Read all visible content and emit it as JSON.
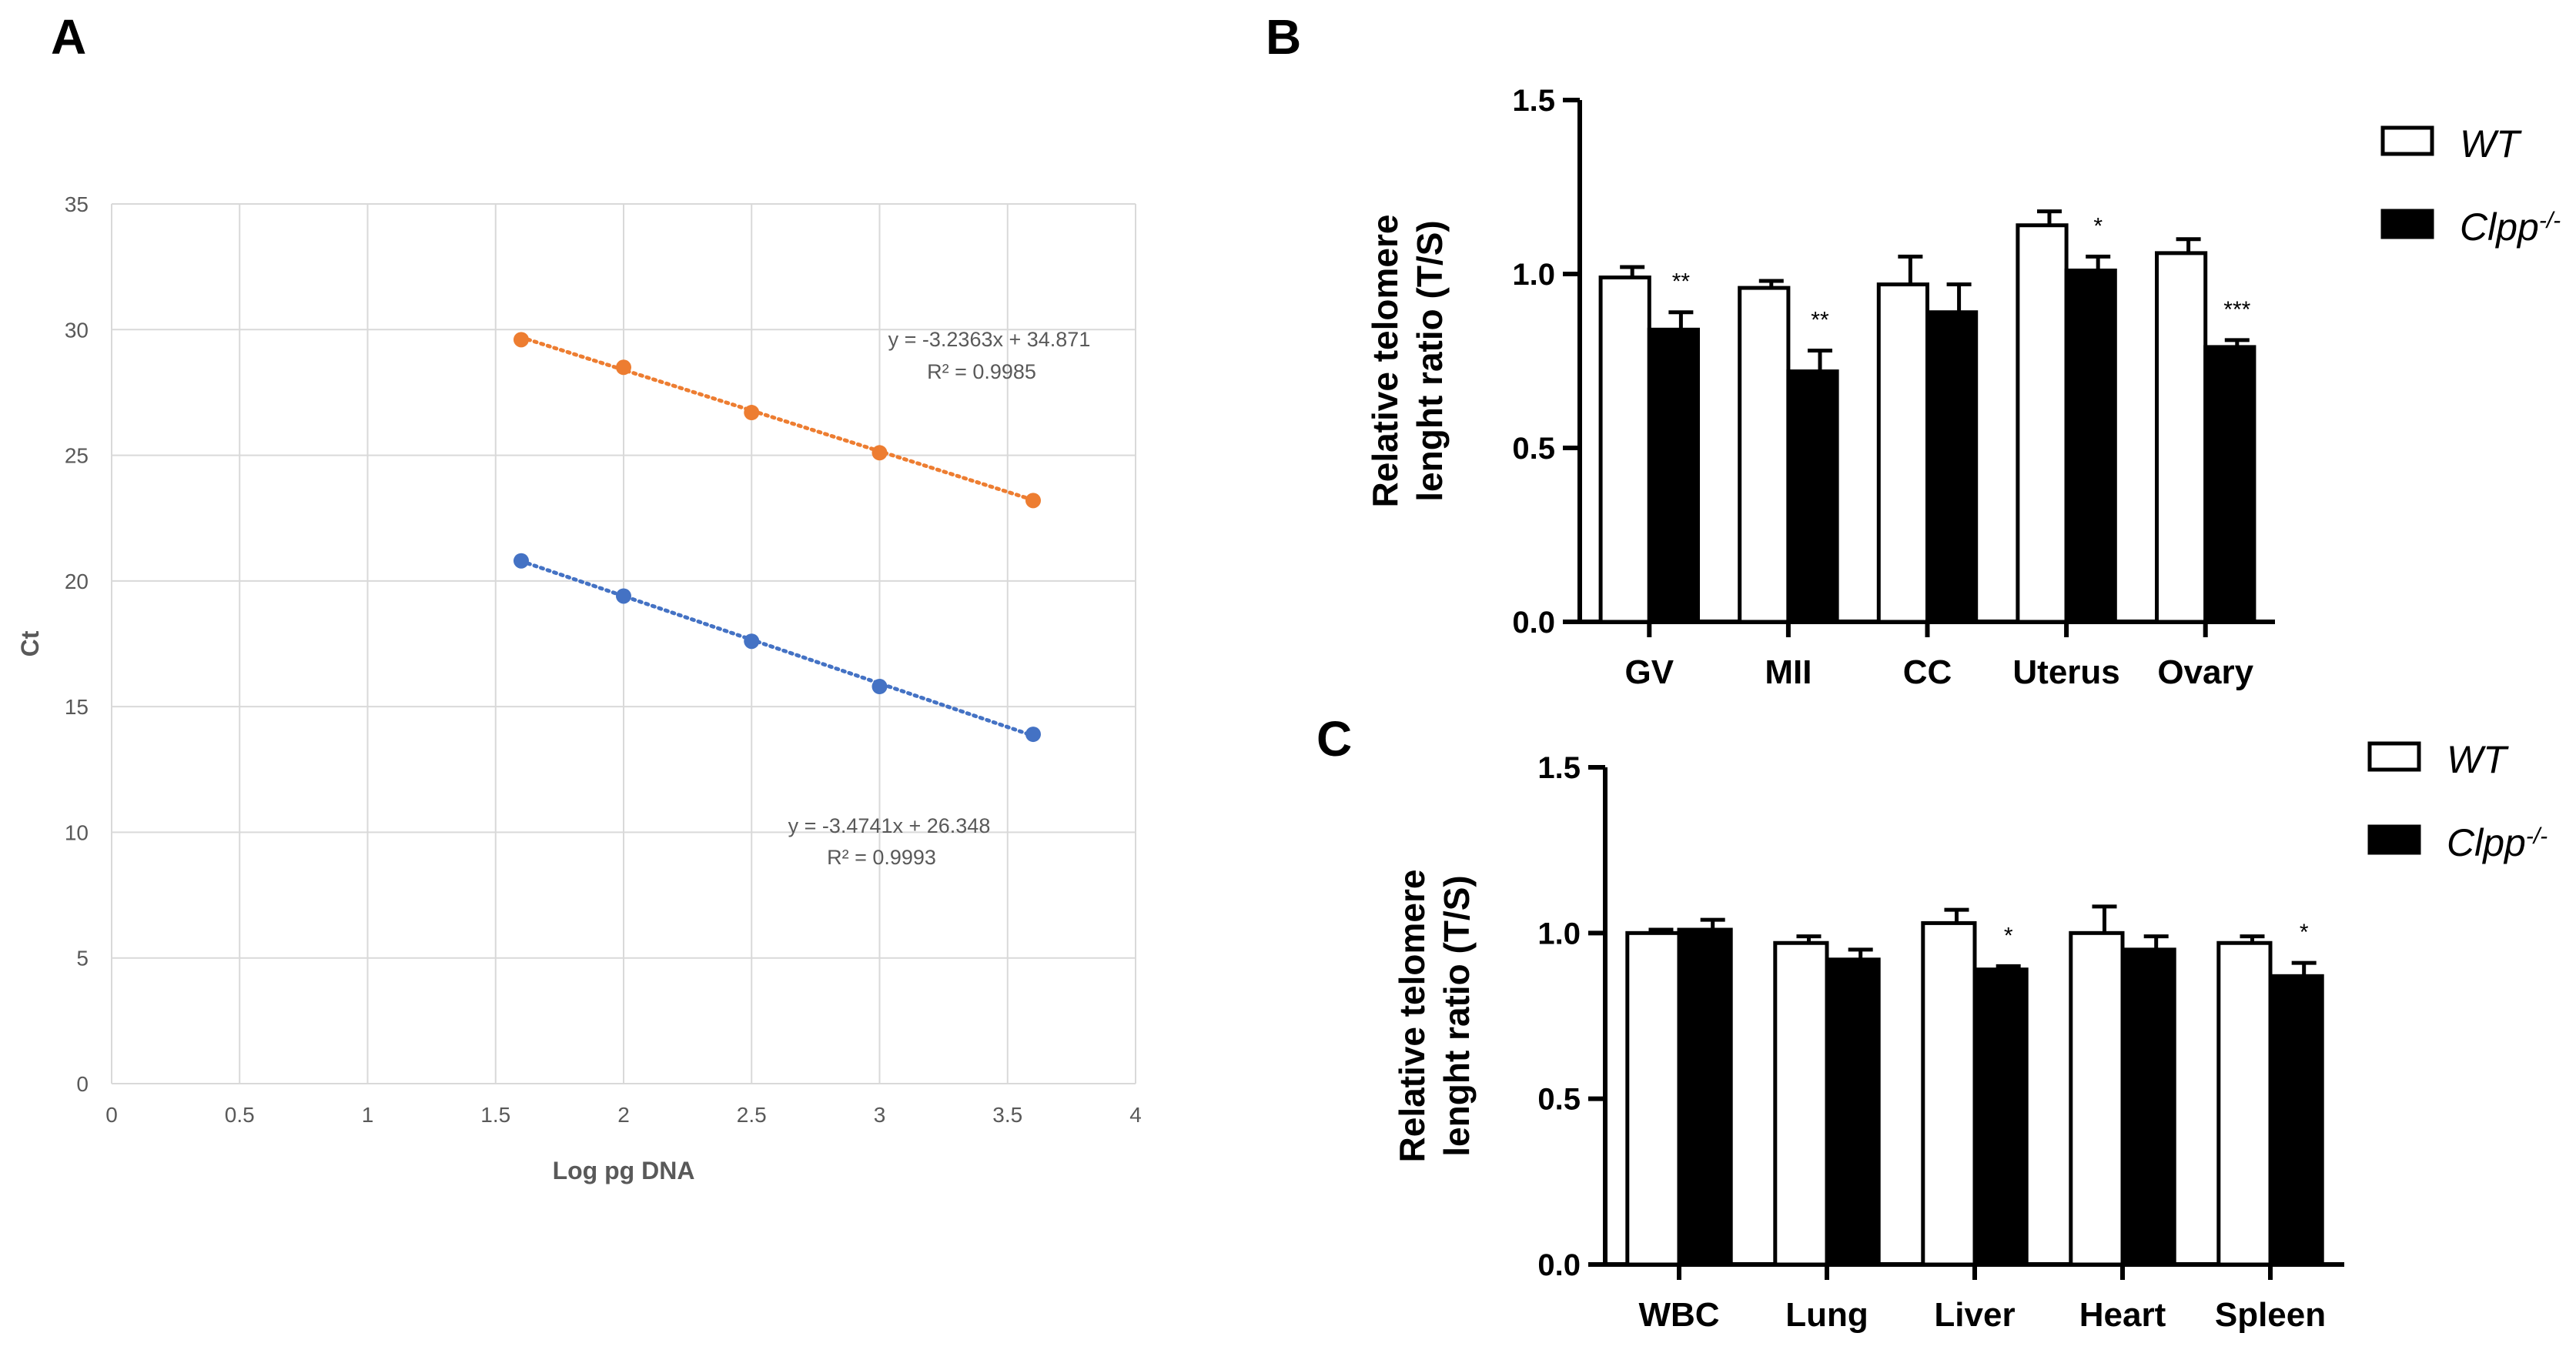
{
  "panels": {
    "a": {
      "letter": "A"
    },
    "b": {
      "letter": "B"
    },
    "c": {
      "letter": "C"
    }
  },
  "chart_data": [
    {
      "id": "A",
      "type": "scatter",
      "xlabel": "Log pg DNA",
      "ylabel": "Ct",
      "xlim": [
        0,
        4
      ],
      "ylim": [
        0,
        35
      ],
      "xticks": [
        "0",
        "0.5",
        "1",
        "1.5",
        "2",
        "2.5",
        "3",
        "3.5",
        "4"
      ],
      "yticks": [
        "0",
        "5",
        "10",
        "15",
        "20",
        "25",
        "30",
        "35"
      ],
      "grid": true,
      "series": [
        {
          "color": "#ED7D31",
          "x": [
            1.6,
            2.0,
            2.5,
            3.0,
            3.6
          ],
          "y": [
            29.6,
            28.5,
            26.7,
            25.1,
            23.2
          ],
          "trendline": {
            "slope": -3.2363,
            "intercept": 34.871
          },
          "equation": "y = -3.2363x + 34.871",
          "r2": "R² = 0.9985"
        },
        {
          "color": "#4472C4",
          "x": [
            1.6,
            2.0,
            2.5,
            3.0,
            3.6
          ],
          "y": [
            20.8,
            19.4,
            17.6,
            15.8,
            13.9
          ],
          "trendline": {
            "slope": -3.4741,
            "intercept": 26.348
          },
          "equation": "y = -3.4741x + 26.348",
          "r2": "R² = 0.9993"
        }
      ]
    },
    {
      "id": "B",
      "type": "bar",
      "ylabel_line1": "Relative telomere",
      "ylabel_line2": "lenght ratio (T/S)",
      "ylim": [
        0,
        1.5
      ],
      "yticks": [
        "0.0",
        "0.5",
        "1.0",
        "1.5"
      ],
      "categories": [
        "GV",
        "MII",
        "CC",
        "Uterus",
        "Ovary"
      ],
      "series": [
        {
          "name": "WT",
          "fill": "#ffffff",
          "values": [
            0.99,
            0.96,
            0.97,
            1.14,
            1.06
          ],
          "errors": [
            0.03,
            0.02,
            0.08,
            0.04,
            0.04
          ]
        },
        {
          "name": "Clpp-/-",
          "fill": "#000000",
          "values": [
            0.84,
            0.72,
            0.89,
            1.01,
            0.79
          ],
          "errors": [
            0.05,
            0.06,
            0.08,
            0.04,
            0.02
          ]
        }
      ],
      "significance": [
        "**",
        "**",
        "",
        "*",
        "***"
      ],
      "legend": [
        "WT",
        "Clpp-/-"
      ],
      "legend_position": "right"
    },
    {
      "id": "C",
      "type": "bar",
      "ylabel_line1": "Relative telomere",
      "ylabel_line2": "lenght ratio (T/S)",
      "ylim": [
        0,
        1.5
      ],
      "yticks": [
        "0.0",
        "0.5",
        "1.0",
        "1.5"
      ],
      "categories": [
        "WBC",
        "Lung",
        "Liver",
        "Heart",
        "Spleen"
      ],
      "series": [
        {
          "name": "WT",
          "fill": "#ffffff",
          "values": [
            1.0,
            0.97,
            1.03,
            1.0,
            0.97
          ],
          "errors": [
            0.01,
            0.02,
            0.04,
            0.08,
            0.02
          ]
        },
        {
          "name": "Clpp-/-",
          "fill": "#000000",
          "values": [
            1.01,
            0.92,
            0.89,
            0.95,
            0.87
          ],
          "errors": [
            0.03,
            0.03,
            0.01,
            0.04,
            0.04
          ]
        }
      ],
      "significance": [
        "",
        "",
        "*",
        "",
        "*"
      ],
      "legend": [
        "WT",
        "Clpp-/-"
      ],
      "legend_position": "right"
    }
  ]
}
